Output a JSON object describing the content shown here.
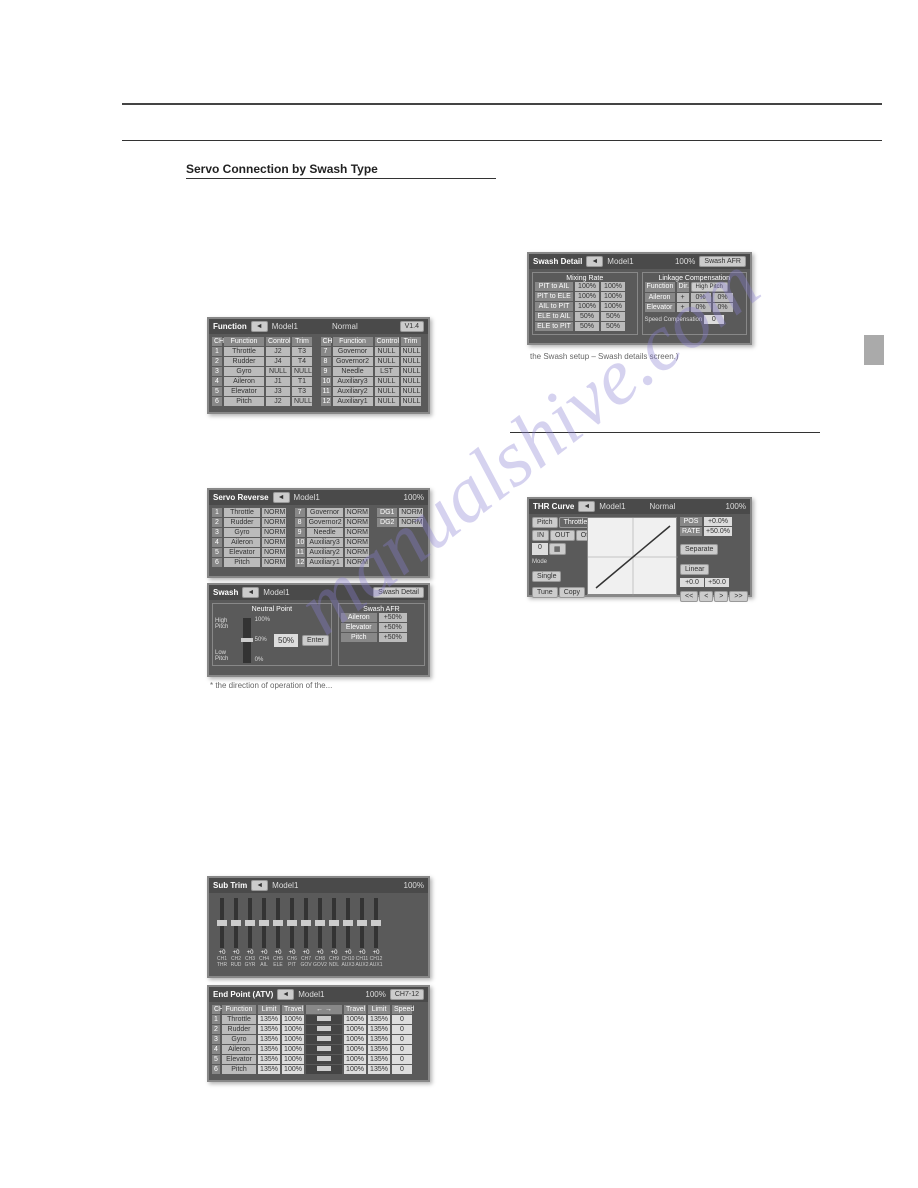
{
  "sectionTitle": "Servo Connection by Swash Type",
  "watermark": "manualshive.com",
  "panels": {
    "function": {
      "title": "Function",
      "model": "Model1",
      "condition": "Normal",
      "version": "V1.4",
      "headerLeft": [
        "CH",
        "Function",
        "Control",
        "Trim"
      ],
      "headerRight": [
        "CH",
        "Function",
        "Control",
        "Trim"
      ],
      "rowsLeft": [
        [
          "1",
          "Throttle",
          "J2",
          "T3"
        ],
        [
          "2",
          "Rudder",
          "J4",
          "T4"
        ],
        [
          "3",
          "Gyro",
          "NULL",
          "NULL"
        ],
        [
          "4",
          "Aileron",
          "J1",
          "T1"
        ],
        [
          "5",
          "Elevator",
          "J3",
          "T3"
        ],
        [
          "6",
          "Pitch",
          "J2",
          "NULL"
        ]
      ],
      "rowsRight": [
        [
          "7",
          "Governor",
          "NULL",
          "NULL"
        ],
        [
          "8",
          "Governor2",
          "NULL",
          "NULL"
        ],
        [
          "9",
          "Needle",
          "LST",
          "NULL"
        ],
        [
          "10",
          "Auxiliary3",
          "NULL",
          "NULL"
        ],
        [
          "11",
          "Auxiliary2",
          "NULL",
          "NULL"
        ],
        [
          "12",
          "Auxiliary1",
          "NULL",
          "NULL"
        ]
      ]
    },
    "servoReverse": {
      "title": "Servo Reverse",
      "model": "Model1",
      "pct": "100%",
      "headers": [
        "CH",
        "Function",
        "Setting"
      ],
      "rowsLeft": [
        [
          "1",
          "Throttle",
          "NORM"
        ],
        [
          "2",
          "Rudder",
          "NORM"
        ],
        [
          "3",
          "Gyro",
          "NORM"
        ],
        [
          "4",
          "Aileron",
          "NORM"
        ],
        [
          "5",
          "Elevator",
          "NORM"
        ],
        [
          "6",
          "Pitch",
          "NORM"
        ]
      ],
      "rowsMid": [
        [
          "7",
          "Governor",
          "NORM"
        ],
        [
          "8",
          "Governor2",
          "NORM"
        ],
        [
          "9",
          "Needle",
          "NORM"
        ],
        [
          "10",
          "Auxiliary3",
          "NORM"
        ],
        [
          "11",
          "Auxiliary2",
          "NORM"
        ],
        [
          "12",
          "Auxiliary1",
          "NORM"
        ]
      ],
      "rowsRight": [
        [
          "DG1",
          "NORM"
        ],
        [
          "DG2",
          "NORM"
        ]
      ]
    },
    "swash": {
      "title": "Swash",
      "model": "Model1",
      "detailBtn": "Swash Detail",
      "neutralTitle": "Neutral Point",
      "afrTitle": "Swash AFR",
      "neutralPct": "50%",
      "enterBtn": "Enter",
      "highPitch": "High Pitch",
      "lowPitch": "Low Pitch",
      "scale": [
        "100%",
        "75%",
        "50%",
        "25%",
        "0%"
      ],
      "afrRows": [
        [
          "Aileron",
          "+50%"
        ],
        [
          "Elevator",
          "+50%"
        ],
        [
          "Pitch",
          "+50%"
        ]
      ]
    },
    "swashDetail": {
      "title": "Swash Detail",
      "model": "Model1",
      "afrBtn": "Swash AFR",
      "mixingTitle": "Mixing Rate",
      "linkageTitle": "Linkage Compensation",
      "pct": "100%",
      "mixHeaders": [
        "Mixing",
        "←→",
        "↻↺"
      ],
      "mixRows": [
        [
          "PIT to AIL",
          "100%",
          "100%"
        ],
        [
          "PIT to ELE",
          "100%",
          "100%"
        ],
        [
          "AIL to PIT",
          "100%",
          "100%"
        ],
        [
          "ELE to AIL",
          "50%",
          "50%"
        ],
        [
          "ELE to PIT",
          "50%",
          "50%"
        ]
      ],
      "linkHeaders": [
        "Function",
        "Dir.",
        "←→",
        "↻↺"
      ],
      "linkPitch": "High Pitch",
      "linkRows": [
        [
          "Aileron",
          "+",
          "0%",
          "0%"
        ],
        [
          "Elevator",
          "+",
          "0%",
          "0%"
        ]
      ],
      "speedComp": "Speed Compensation",
      "speedVal": "0"
    },
    "thrCurve": {
      "title": "THR Curve",
      "model": "Model1",
      "condition": "Normal",
      "pct": "100%",
      "tabs": [
        "Pitch",
        "Throttle"
      ],
      "pos": "POS",
      "rate": "RATE",
      "posVal": "+0.0%",
      "rateVal": "+50.0%",
      "inBtn": "IN",
      "outBtn": "OUT",
      "offsetBtn": "Offset",
      "val0": "0",
      "modeLabel": "Mode",
      "modeBtn": "Single",
      "tuneBtn": "Tune",
      "copyBtn": "Copy",
      "separate": "Separate",
      "linear": "Linear",
      "points": [
        "+0.0",
        "+50.0"
      ],
      "nav": [
        "<<",
        "<",
        ">",
        ">>"
      ],
      "yaxis": [
        "+100",
        "+50",
        "0",
        "-50",
        "-100"
      ]
    },
    "subTrim": {
      "title": "Sub Trim",
      "model": "Model1",
      "pct": "100%",
      "channels": [
        "+0",
        "+0",
        "+0",
        "+0",
        "+0",
        "+0",
        "+0",
        "+0",
        "+0",
        "+0",
        "+0",
        "+0"
      ],
      "names": [
        "THR",
        "RUD",
        "GYR",
        "AIL",
        "ELE",
        "PIT",
        "GOV",
        "GOV2",
        "NDL",
        "AUX3",
        "AUX2",
        "AUX1"
      ],
      "chLabels": [
        "CH1",
        "CH2",
        "CH3",
        "CH4",
        "CH5",
        "CH6",
        "CH7",
        "CH8",
        "CH9",
        "CH10",
        "CH11",
        "CH12"
      ]
    },
    "endPoint": {
      "title": "End Point (ATV)",
      "model": "Model1",
      "pct": "100%",
      "nav": "CH7-12",
      "headers": [
        "CH",
        "Function",
        "Limit",
        "Travel",
        "←→",
        "↻↺",
        "Travel",
        "Limit",
        "Speed"
      ],
      "rows": [
        [
          "1",
          "Throttle",
          "135%",
          "100%",
          "",
          "",
          "100%",
          "135%",
          "0"
        ],
        [
          "2",
          "Rudder",
          "135%",
          "100%",
          "",
          "",
          "100%",
          "135%",
          "0"
        ],
        [
          "3",
          "Gyro",
          "135%",
          "100%",
          "",
          "",
          "100%",
          "135%",
          "0"
        ],
        [
          "4",
          "Aileron",
          "135%",
          "100%",
          "",
          "",
          "100%",
          "135%",
          "0"
        ],
        [
          "5",
          "Elevator",
          "135%",
          "100%",
          "",
          "",
          "100%",
          "135%",
          "0"
        ],
        [
          "6",
          "Pitch",
          "135%",
          "100%",
          "",
          "",
          "100%",
          "135%",
          "0"
        ]
      ]
    }
  },
  "caption": "the Swash setup – Swash details screen.)",
  "caption2": "* the direction of operation of the..."
}
